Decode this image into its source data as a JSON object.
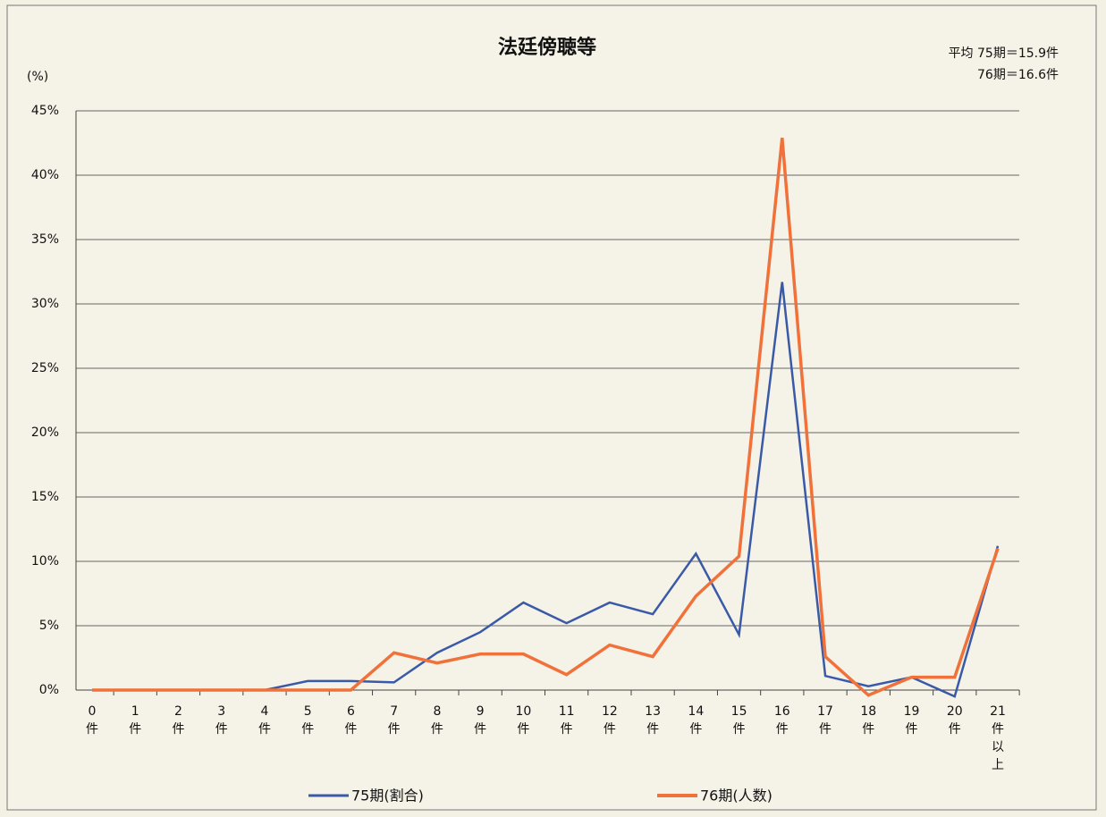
{
  "chart_data": {
    "type": "line",
    "title": "法廷傍聴等",
    "annotations": [
      "平均 75期＝15.9件",
      "76期＝16.6件"
    ],
    "y_label": "(%)",
    "categories": [
      "0件",
      "1件",
      "2件",
      "3件",
      "4件",
      "5件",
      "6件",
      "7件",
      "8件",
      "9件",
      "10件",
      "11件",
      "12件",
      "13件",
      "14件",
      "15件",
      "16件",
      "17件",
      "18件",
      "19件",
      "20件",
      "21件以上"
    ],
    "series": [
      {
        "name": "75期(割合)",
        "color": "#3a5aa8",
        "values": [
          0,
          0,
          0,
          0,
          0,
          0.7,
          0.7,
          0.6,
          2.9,
          4.5,
          6.8,
          5.2,
          6.8,
          5.9,
          10.6,
          4.3,
          31.7,
          1.1,
          0.3,
          1.0,
          -0.5,
          11.2
        ]
      },
      {
        "name": "76期(人数)",
        "color": "#f0723a",
        "values": [
          0,
          0,
          0,
          0,
          0,
          0,
          0,
          2.9,
          2.1,
          2.8,
          2.8,
          1.2,
          3.5,
          2.6,
          7.3,
          10.4,
          42.9,
          2.6,
          -0.4,
          1.0,
          1.0,
          11.0
        ]
      }
    ],
    "ylim": [
      0,
      45
    ],
    "yticks": [
      {
        "value": 0,
        "label": "0%"
      },
      {
        "value": 5,
        "label": "5%"
      },
      {
        "value": 10,
        "label": "10%"
      },
      {
        "value": 15,
        "label": "15%"
      },
      {
        "value": 20,
        "label": "20%"
      },
      {
        "value": 25,
        "label": "25%"
      },
      {
        "value": 30,
        "label": "30%"
      },
      {
        "value": 35,
        "label": "35%"
      },
      {
        "value": 40,
        "label": "40%"
      },
      {
        "value": 45,
        "label": "45%"
      }
    ],
    "grid": true,
    "legend": "bottom"
  }
}
